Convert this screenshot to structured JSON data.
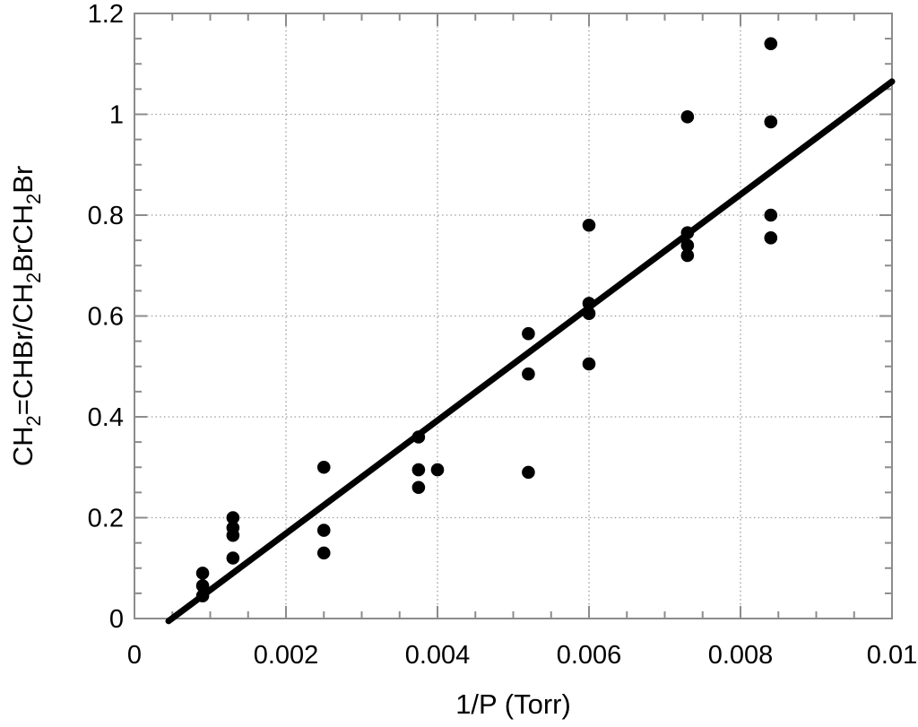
{
  "chart_data": {
    "type": "scatter",
    "title": "",
    "xlabel": "1/P (Torr)",
    "ylabel": "CH2=CHBr/CH2BrCH2Br",
    "ylabel_segments": [
      {
        "text": "CH",
        "sub": false
      },
      {
        "text": "2",
        "sub": true
      },
      {
        "text": "=CHBr/CH",
        "sub": false
      },
      {
        "text": "2",
        "sub": true
      },
      {
        "text": "BrCH",
        "sub": false
      },
      {
        "text": "2",
        "sub": true
      },
      {
        "text": "Br",
        "sub": false
      }
    ],
    "xlim": [
      0,
      0.01
    ],
    "ylim": [
      0,
      1.2
    ],
    "x_major_ticks": [
      0,
      0.002,
      0.004,
      0.006,
      0.008,
      0.01
    ],
    "x_tick_labels": [
      "0",
      "0.002",
      "0.004",
      "0.006",
      "0.008",
      "0.01"
    ],
    "x_minor_step": 0.0005,
    "y_major_ticks": [
      0,
      0.2,
      0.4,
      0.6,
      0.8,
      1.0,
      1.2
    ],
    "y_tick_labels": [
      "0",
      "0.2",
      "0.4",
      "0.6",
      "0.8",
      "1",
      "1.2"
    ],
    "y_minor_step": 0.05,
    "grid": "dotted lines at major ticks, both axes",
    "legend": "none",
    "points": [
      [
        0.0009,
        0.09
      ],
      [
        0.0009,
        0.065
      ],
      [
        0.0009,
        0.045
      ],
      [
        0.0013,
        0.2
      ],
      [
        0.0013,
        0.18
      ],
      [
        0.0013,
        0.165
      ],
      [
        0.0013,
        0.12
      ],
      [
        0.0025,
        0.3
      ],
      [
        0.0025,
        0.175
      ],
      [
        0.0025,
        0.13
      ],
      [
        0.00375,
        0.36
      ],
      [
        0.00375,
        0.295
      ],
      [
        0.00375,
        0.26
      ],
      [
        0.004,
        0.295
      ],
      [
        0.0052,
        0.565
      ],
      [
        0.0052,
        0.485
      ],
      [
        0.0052,
        0.29
      ],
      [
        0.006,
        0.78
      ],
      [
        0.006,
        0.625
      ],
      [
        0.006,
        0.605
      ],
      [
        0.006,
        0.505
      ],
      [
        0.0073,
        0.995
      ],
      [
        0.0073,
        0.765
      ],
      [
        0.0073,
        0.74
      ],
      [
        0.0073,
        0.72
      ],
      [
        0.0084,
        1.14
      ],
      [
        0.0084,
        0.985
      ],
      [
        0.0084,
        0.8
      ],
      [
        0.0084,
        0.755
      ]
    ],
    "fit_line": {
      "x1": 0.00045,
      "y1": -0.005,
      "x2": 0.01,
      "y2": 1.065
    },
    "colors": {
      "points": "#000000",
      "fit_line": "#000000",
      "frame": "#8c8c8c",
      "grid": "#9c9c9c",
      "text": "#000000",
      "background": "#ffffff"
    }
  }
}
